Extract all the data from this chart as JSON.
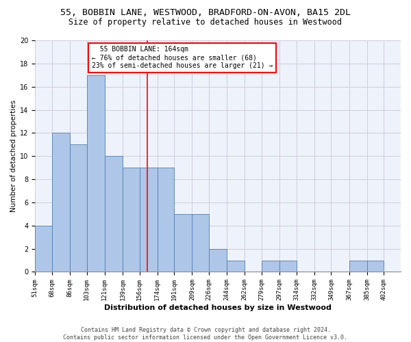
{
  "title1": "55, BOBBIN LANE, WESTWOOD, BRADFORD-ON-AVON, BA15 2DL",
  "title2": "Size of property relative to detached houses in Westwood",
  "xlabel": "Distribution of detached houses by size in Westwood",
  "ylabel": "Number of detached properties",
  "footer1": "Contains HM Land Registry data © Crown copyright and database right 2024.",
  "footer2": "Contains public sector information licensed under the Open Government Licence v3.0.",
  "annotation_line1": "55 BOBBIN LANE: 164sqm",
  "annotation_line2": "← 76% of detached houses are smaller (68)",
  "annotation_line3": "23% of semi-detached houses are larger (21) →",
  "bar_edges": [
    51,
    68,
    86,
    103,
    121,
    139,
    156,
    174,
    191,
    209,
    226,
    244,
    262,
    279,
    297,
    314,
    332,
    349,
    367,
    385,
    402
  ],
  "bar_heights": [
    4,
    12,
    11,
    17,
    10,
    9,
    9,
    9,
    5,
    5,
    2,
    1,
    0,
    1,
    1,
    0,
    0,
    0,
    1,
    1,
    0
  ],
  "bar_color": "#aec6e8",
  "bar_edge_color": "#5080b0",
  "vline_x": 164,
  "vline_color": "red",
  "ylim": [
    0,
    20
  ],
  "yticks": [
    0,
    2,
    4,
    6,
    8,
    10,
    12,
    14,
    16,
    18,
    20
  ],
  "bg_color": "#eef2fa",
  "grid_color": "#c8c8d8",
  "title_fontsize": 9.5,
  "subtitle_fontsize": 8.5,
  "axis_label_fontsize": 7.5,
  "tick_fontsize": 6.5,
  "footer_fontsize": 6,
  "ann_fontsize": 7
}
